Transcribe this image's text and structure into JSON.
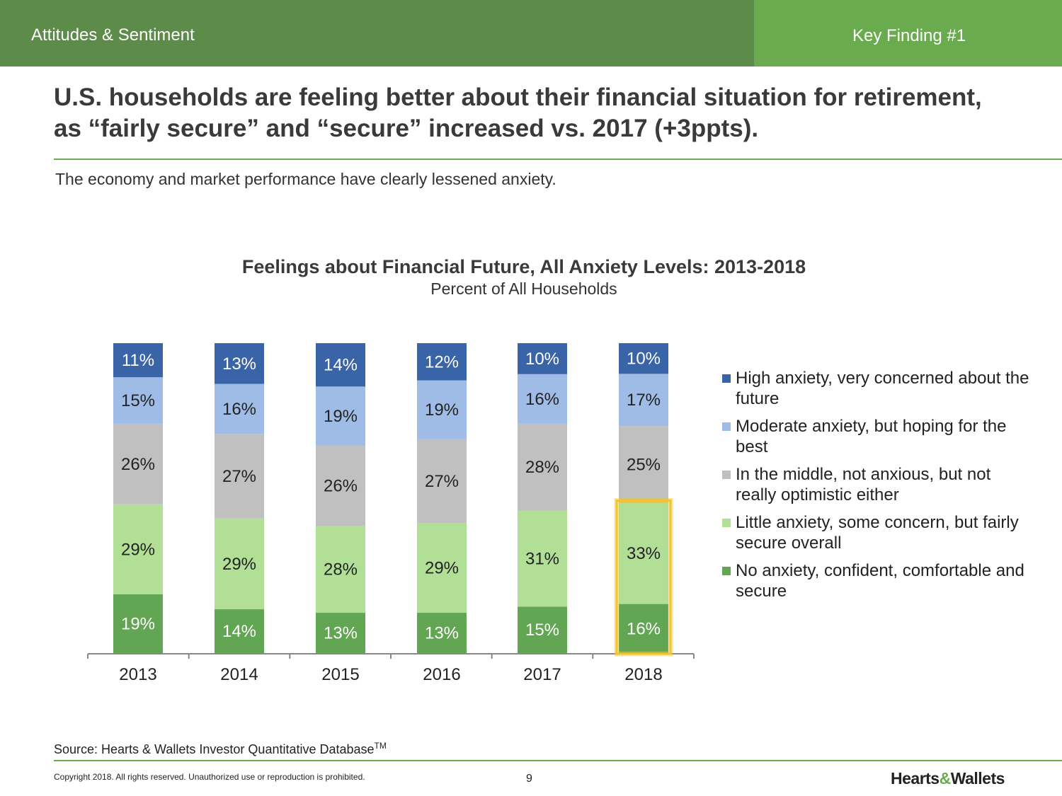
{
  "header": {
    "section": "Attitudes & Sentiment",
    "finding": "Key Finding #1",
    "colors": {
      "left": "#5c8b4a",
      "right": "#6aab4f"
    }
  },
  "headline": "U.S. households are feeling better about their financial situation for retirement, as “fairly secure” and “secure” increased vs. 2017 (+3ppts).",
  "subline": "The economy and market performance have clearly lessened anxiety.",
  "chart_data": {
    "type": "bar",
    "stacked": true,
    "title": "Feelings about Financial Future, All Anxiety Levels: 2013-2018",
    "subtitle": "Percent of All Households",
    "categories": [
      "2013",
      "2014",
      "2015",
      "2016",
      "2017",
      "2018"
    ],
    "series": [
      {
        "name": "No anxiety, confident, comfortable and secure",
        "color": "#62a553",
        "values": [
          19,
          14,
          13,
          13,
          15,
          16
        ]
      },
      {
        "name": "Little anxiety, some concern, but fairly secure overall",
        "color": "#b2df96",
        "values": [
          29,
          29,
          28,
          29,
          31,
          33
        ]
      },
      {
        "name": "In the middle, not anxious, but not really optimistic either",
        "color": "#c0c0c0",
        "values": [
          26,
          27,
          26,
          27,
          28,
          25
        ]
      },
      {
        "name": "Moderate anxiety, but hoping for the best",
        "color": "#9fbce6",
        "values": [
          15,
          16,
          19,
          19,
          16,
          17
        ]
      },
      {
        "name": "High anxiety, very concerned about the future",
        "color": "#3a64a8",
        "values": [
          11,
          13,
          14,
          12,
          10,
          10
        ]
      }
    ],
    "legend_position": "right",
    "grid": false,
    "highlight": {
      "category": "2018",
      "series": [
        0,
        1
      ],
      "color": "#f3c431"
    }
  },
  "legend": [
    {
      "label": "High anxiety, very concerned about the future",
      "color": "#3a64a8"
    },
    {
      "label": "Moderate anxiety, but hoping for the best",
      "color": "#9fbce6"
    },
    {
      "label": "In the middle, not anxious, but not really optimistic either",
      "color": "#c0c0c0"
    },
    {
      "label": "Little anxiety, some concern, but fairly secure overall",
      "color": "#b2df96"
    },
    {
      "label": "No anxiety, confident, comfortable and secure",
      "color": "#62a553"
    }
  ],
  "footer": {
    "source": "Source: Hearts & Wallets Investor Quantitative Database",
    "source_mark": "TM",
    "copyright": "Copyright 2018. All rights reserved. Unauthorized use or reproduction is prohibited.",
    "page_number": "9",
    "brand_a": "Hearts",
    "brand_amp": "&",
    "brand_b": "Wallets"
  }
}
